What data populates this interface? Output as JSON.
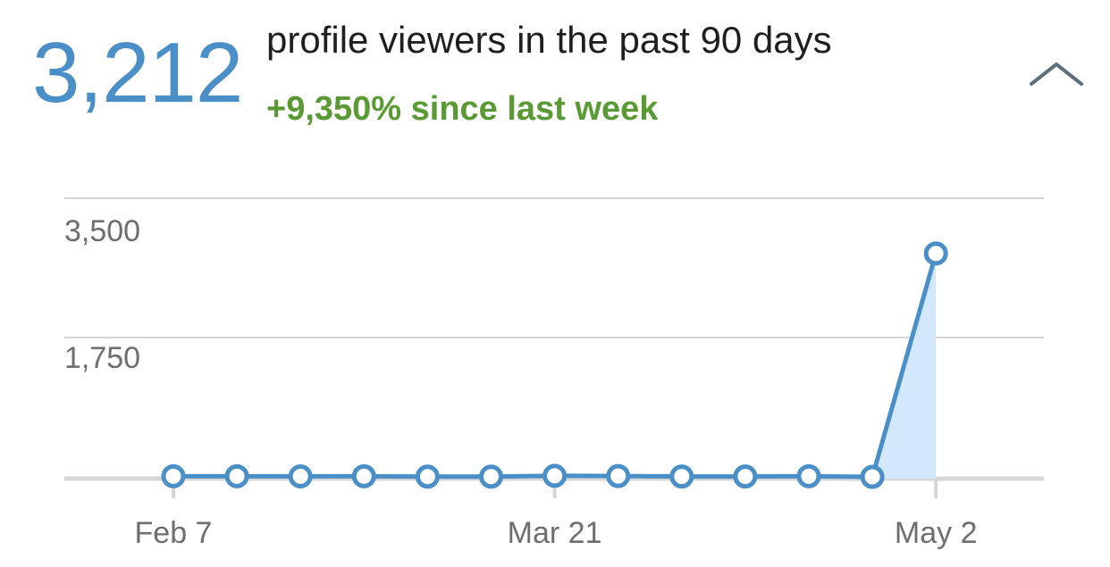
{
  "header": {
    "count": "3,212",
    "headline": "profile viewers in the past 90 days",
    "change": "+9,350% since last week",
    "collapse_icon": "chevron-up-icon"
  },
  "colors": {
    "accent": "#4a8fc8",
    "positive": "#5a9a34",
    "area_fill": "#d3e8fa",
    "grid": "#d6d6d6",
    "axis_text": "#6e6e6e"
  },
  "chart_data": {
    "type": "line",
    "title": "",
    "xlabel": "",
    "ylabel": "",
    "x_ticks": [
      "Feb 7",
      "Mar 21",
      "May 2"
    ],
    "y_ticks": [
      "3,500",
      "1,750"
    ],
    "ylim": [
      0,
      4000
    ],
    "series": [
      {
        "name": "profile viewers",
        "values": [
          34,
          34,
          32,
          34,
          28,
          28,
          40,
          36,
          30,
          30,
          34,
          25,
          3212
        ],
        "highlight_last_area": true
      }
    ],
    "grid": true
  }
}
